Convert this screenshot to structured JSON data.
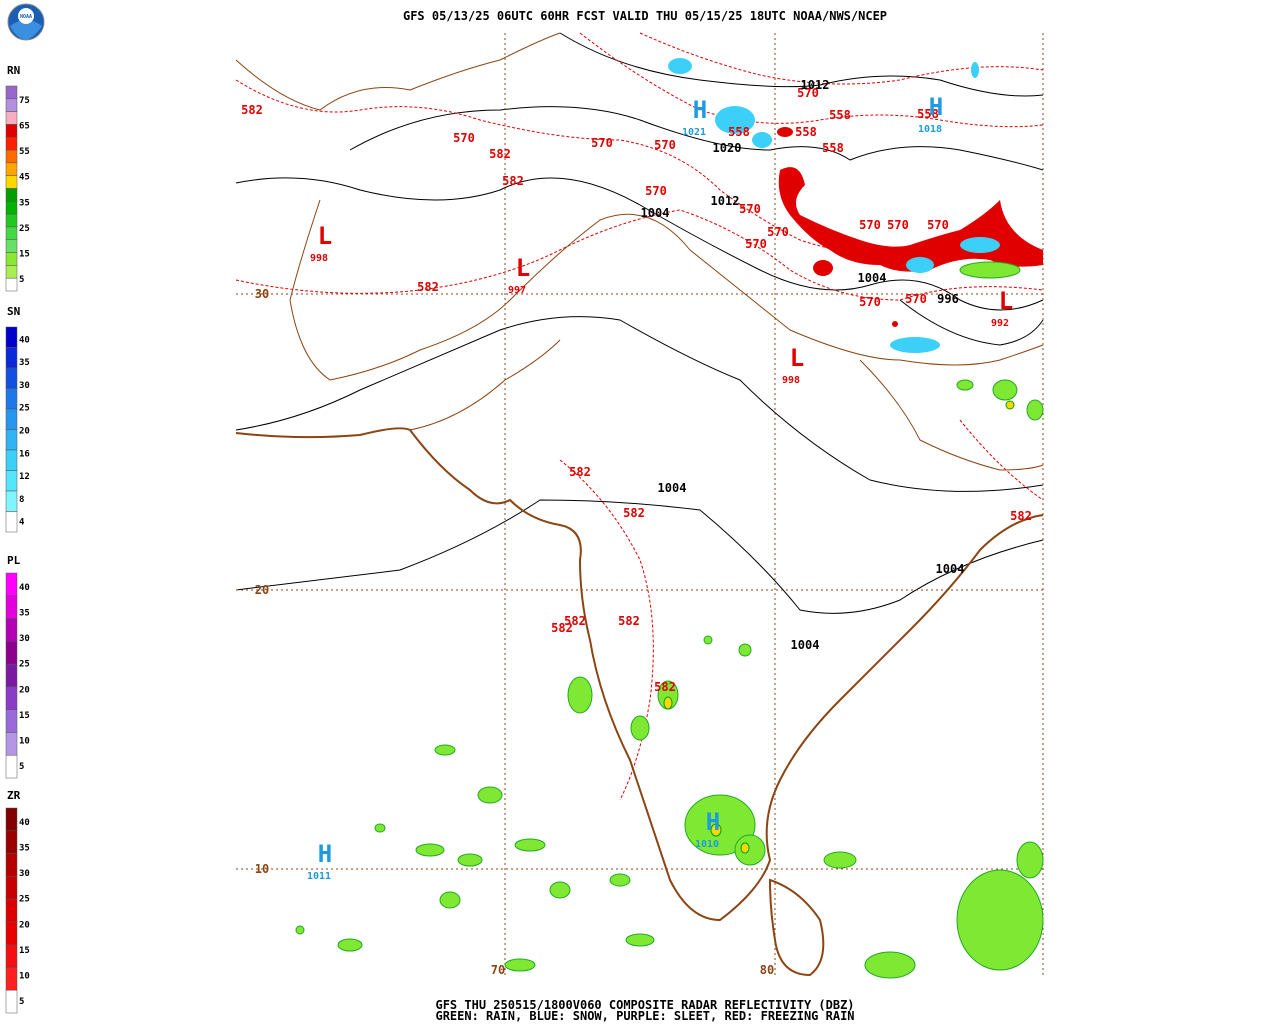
{
  "header": {
    "title": "GFS 05/13/25 06UTC 60HR FCST VALID THU 05/15/25 18UTC NOAA/NWS/NCEP",
    "logo": "NOAA"
  },
  "footer": {
    "line1": "GFS THU 250515/1800V060 COMPOSITE RADAR REFLECTIVITY (DBZ)",
    "line2": "GREEN: RAIN, BLUE: SNOW, PURPLE: SLEET, RED: FREEZING RAIN"
  },
  "legends": [
    {
      "name": "RN",
      "levels": [
        75,
        65,
        55,
        45,
        35,
        25,
        15,
        5
      ],
      "colors": [
        "#9966cc",
        "#b38fdd",
        "#f4b0c0",
        "#e00000",
        "#ff2000",
        "#ff6a00",
        "#ffa500",
        "#ffd700",
        "#00a000",
        "#00b400",
        "#22c822",
        "#44d944",
        "#66e066",
        "#88e833",
        "#aaee55",
        "#ffffff"
      ]
    },
    {
      "name": "SN",
      "levels": [
        40,
        35,
        30,
        25,
        20,
        16,
        12,
        8,
        4
      ],
      "colors": [
        "#0000cc",
        "#0a2ad8",
        "#1450e0",
        "#1e78e8",
        "#2896f0",
        "#32b4f4",
        "#3cd0f8",
        "#55e6fc",
        "#80f4ff",
        "#ffffff"
      ]
    },
    {
      "name": "PL",
      "levels": [
        40,
        35,
        30,
        25,
        20,
        15,
        10,
        5
      ],
      "colors": [
        "#ff00ff",
        "#e400dc",
        "#b400b4",
        "#8c008c",
        "#7a1aa0",
        "#8a3cc8",
        "#9a6ad8",
        "#b496e4",
        "#ffffff"
      ]
    },
    {
      "name": "ZR",
      "levels": [
        40,
        35,
        30,
        25,
        20,
        15,
        10,
        5
      ],
      "colors": [
        "#800000",
        "#9a0000",
        "#b40000",
        "#c80000",
        "#dc0000",
        "#e80000",
        "#f41010",
        "#ff2020",
        "#ffffff"
      ]
    }
  ],
  "map": {
    "contour_labels": [
      582,
      570,
      582,
      570,
      570,
      582,
      570,
      570,
      558,
      558,
      558,
      558,
      558,
      570,
      570,
      570,
      570,
      570,
      570,
      570,
      570,
      582,
      582,
      582,
      582,
      582,
      582,
      582,
      582,
      570
    ],
    "pressure_labels": [
      1012,
      1020,
      1012,
      1004,
      1004,
      996,
      1004,
      1004,
      1004
    ],
    "systems": [
      {
        "symbol": "H",
        "value": 1021
      },
      {
        "symbol": "H",
        "value": 1018
      },
      {
        "symbol": "L",
        "value": 998
      },
      {
        "symbol": "L",
        "value": 997
      },
      {
        "symbol": "L",
        "value": 998
      },
      {
        "symbol": "L",
        "value": 992
      },
      {
        "symbol": "H",
        "value": 1011
      },
      {
        "symbol": "H",
        "value": 1010
      }
    ],
    "grid_labels": [
      30,
      20,
      10,
      70,
      80
    ]
  }
}
